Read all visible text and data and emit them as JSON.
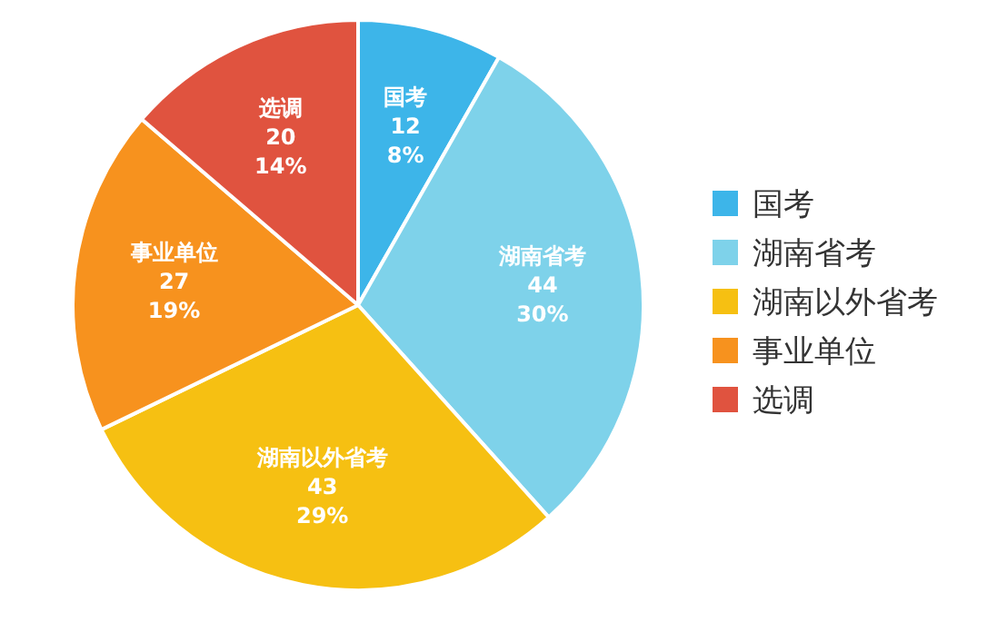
{
  "chart_data": {
    "type": "pie",
    "categories": [
      "国考",
      "湖南省考",
      "湖南以外省考",
      "事业单位",
      "选调"
    ],
    "values": [
      12,
      44,
      43,
      27,
      20
    ],
    "value_labels": [
      "12\n8%",
      "44\n30%",
      "43\n29%",
      "27\n19%",
      "20\n14%"
    ],
    "colors": [
      "#3db5e9",
      "#7ed2ea",
      "#f6c012",
      "#f7921e",
      "#e0533f"
    ],
    "legend": "right"
  }
}
